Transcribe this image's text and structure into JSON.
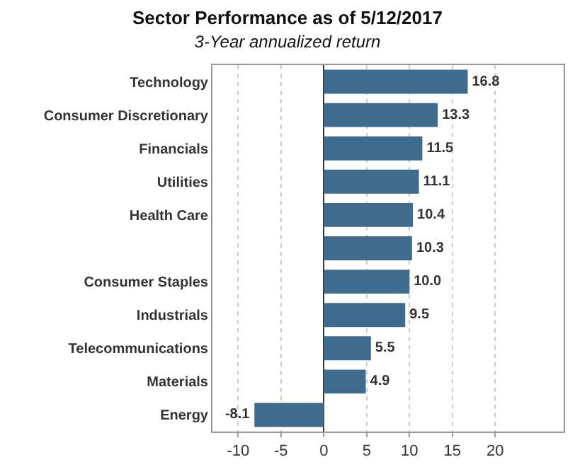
{
  "chart_data": {
    "type": "bar",
    "orientation": "horizontal",
    "title": "Sector Performance as of 5/12/2017",
    "subtitle": "3-Year annualized return",
    "categories": [
      "Technology",
      "Consumer Discretionary",
      "Financials",
      "Utilities",
      "Health Care",
      null,
      "Consumer Staples",
      "Industrials",
      "Telecommunications",
      "Materials",
      "Energy"
    ],
    "values": [
      16.8,
      13.3,
      11.5,
      11.1,
      10.4,
      10.3,
      10.0,
      9.5,
      5.5,
      4.9,
      -8.1
    ],
    "value_labels": [
      "16.8",
      "13.3",
      "11.5",
      "11.1",
      "10.4",
      "10.3",
      "10.0",
      "9.5",
      "5.5",
      "4.9",
      "-8.1"
    ],
    "color": "#3f6b8e",
    "xlim": [
      -13,
      28
    ],
    "xticks": [
      -10,
      -5,
      0,
      5,
      10,
      15,
      20
    ],
    "grid": "x"
  }
}
